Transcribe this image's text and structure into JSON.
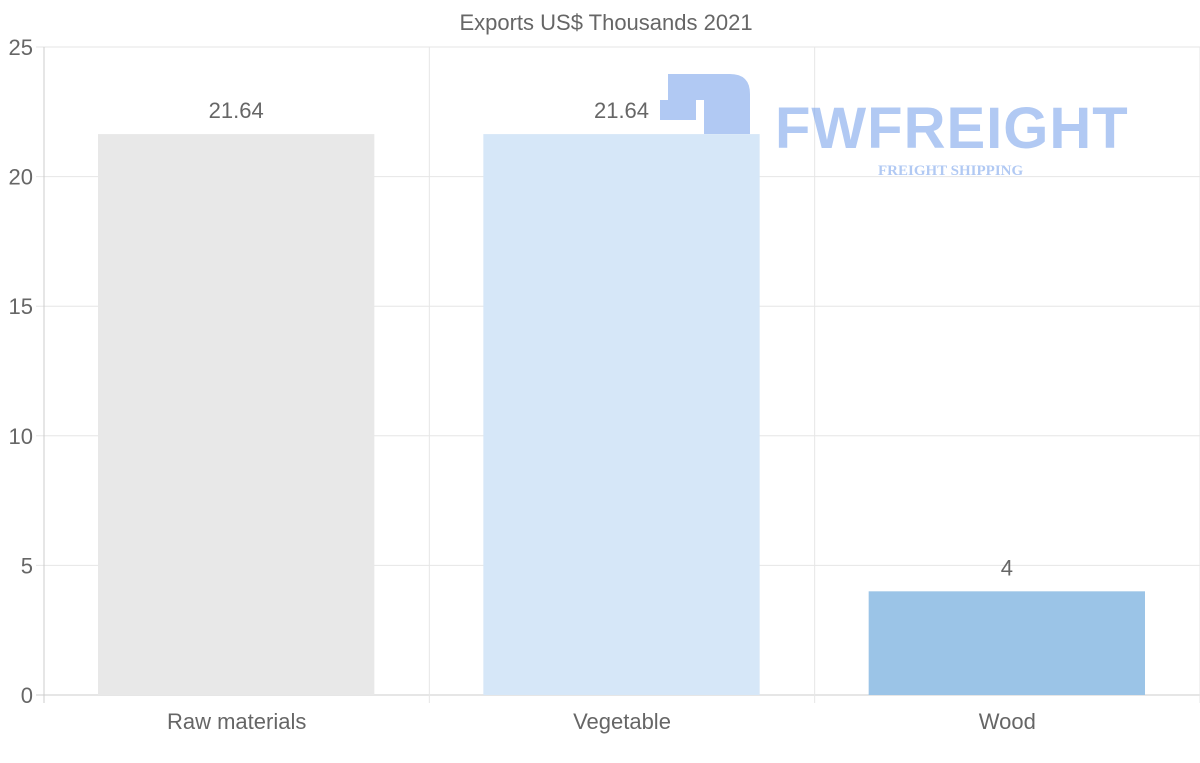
{
  "chart_data": {
    "type": "bar",
    "title": "Exports US$ Thousands 2021",
    "categories": [
      "Raw materials",
      "Vegetable",
      "Wood"
    ],
    "values": [
      21.64,
      21.64,
      4
    ],
    "data_labels": [
      "21.64",
      "21.64",
      "4"
    ],
    "bar_colors": [
      "#e8e8e8",
      "#d6e7f8",
      "#9bc4e7"
    ],
    "xlabel": "",
    "ylabel": "",
    "ylim": [
      0,
      25
    ],
    "yticks": [
      0,
      5,
      10,
      15,
      20,
      25
    ],
    "grid": true,
    "legend": "none"
  },
  "watermark": {
    "brand": "FWFREIGHT",
    "tagline": "FREIGHT SHIPPING",
    "color": "#7ea6ec"
  }
}
